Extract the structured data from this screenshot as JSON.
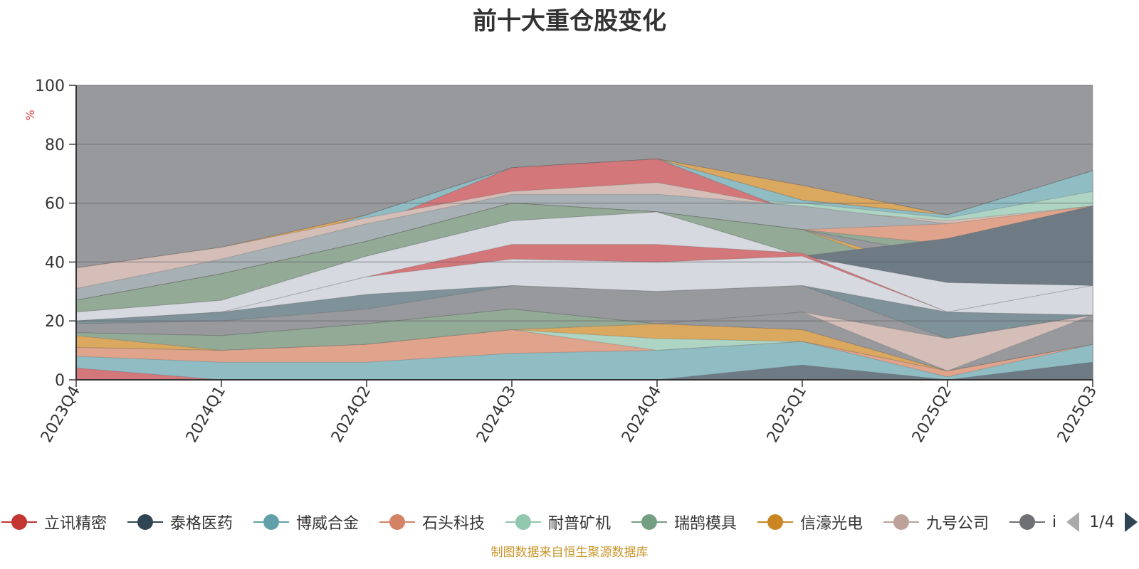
{
  "chart_data": {
    "type": "area",
    "stacked": false,
    "title": "前十大重仓股变化",
    "ylabel": "%",
    "xlabel": "",
    "ylim": [
      0,
      100
    ],
    "yticks": [
      0,
      20,
      40,
      60,
      80,
      100
    ],
    "categories": [
      "2023Q4",
      "2024Q1",
      "2024Q2",
      "2024Q3",
      "2024Q4",
      "2025Q1",
      "2025Q2",
      "2025Q3"
    ],
    "grid": true,
    "layers": [
      {
        "color": "#98999d",
        "values": [
          100,
          100,
          100,
          100,
          100,
          100,
          100,
          100
        ]
      },
      {
        "color": "#d6dae0",
        "values": [
          38,
          45,
          56,
          72,
          75,
          66,
          56,
          71
        ]
      },
      {
        "color": "#d4777a",
        "values": [
          38,
          45,
          56,
          72,
          75,
          66,
          56,
          71
        ]
      },
      {
        "color": "#dba860",
        "values": [
          38,
          45,
          56,
          72,
          75,
          66,
          56,
          71
        ]
      },
      {
        "color": "#92aa97",
        "values": [
          34,
          41,
          56,
          72,
          75,
          61,
          56,
          71
        ]
      },
      {
        "color": "#90bcc4",
        "values": [
          33,
          41,
          56,
          72,
          75,
          61,
          56,
          71
        ]
      },
      {
        "color": "#aed4c3",
        "values": [
          33,
          41,
          53,
          64,
          63,
          60,
          55,
          64
        ]
      },
      {
        "color": "#d6dae0",
        "values": [
          31,
          41,
          52,
          72,
          75,
          56,
          53,
          59
        ]
      },
      {
        "color": "#d4777a",
        "values": [
          31,
          41,
          52,
          72,
          75,
          56,
          53,
          59
        ]
      },
      {
        "color": "#d4beb7",
        "values": [
          38,
          45,
          55,
          64,
          67,
          58,
          54,
          59
        ]
      },
      {
        "color": "#a7b0b4",
        "values": [
          31,
          41,
          53,
          63,
          63,
          59,
          53,
          58
        ]
      },
      {
        "color": "#e0a48c",
        "values": [
          27,
          36,
          47,
          60,
          57,
          51,
          53,
          59
        ]
      },
      {
        "color": "#93aa97",
        "values": [
          27,
          36,
          47,
          60,
          57,
          51,
          46,
          46
        ]
      },
      {
        "color": "#d4beb7",
        "values": [
          27,
          36,
          47,
          60,
          57,
          51,
          42,
          45
        ]
      },
      {
        "color": "#97999d",
        "values": [
          27,
          36,
          47,
          60,
          57,
          51,
          42,
          45
        ]
      },
      {
        "color": "#dba860",
        "values": [
          27,
          36,
          47,
          60,
          57,
          51,
          36,
          39
        ]
      },
      {
        "color": "#93aa97",
        "values": [
          27,
          36,
          47,
          60,
          57,
          51,
          33,
          32
        ]
      },
      {
        "color": "#6e7b85",
        "values": [
          23,
          27,
          42,
          54,
          57,
          42,
          48,
          59
        ]
      },
      {
        "color": "#d6dae0",
        "values": [
          23,
          27,
          42,
          54,
          57,
          42,
          33,
          32
        ]
      },
      {
        "color": "#d4777a",
        "values": [
          20,
          23,
          35,
          46,
          46,
          43,
          23,
          32
        ]
      },
      {
        "color": "#d6dae0",
        "values": [
          20,
          23,
          35,
          41,
          40,
          42,
          23,
          32
        ]
      },
      {
        "color": "#7f9199",
        "values": [
          20,
          23,
          29,
          32,
          30,
          32,
          23,
          22
        ]
      },
      {
        "color": "#97999d",
        "values": [
          19,
          20,
          24,
          32,
          30,
          32,
          14,
          22
        ]
      },
      {
        "color": "#d4beb7",
        "values": [
          16,
          15,
          19,
          24,
          19,
          23,
          14,
          22
        ]
      },
      {
        "color": "#97999d",
        "values": [
          16,
          15,
          19,
          24,
          19,
          23,
          3,
          22
        ]
      },
      {
        "color": "#93aa97",
        "values": [
          16,
          15,
          19,
          24,
          19,
          17,
          3,
          12
        ]
      },
      {
        "color": "#dba860",
        "values": [
          15,
          10,
          12,
          17,
          19,
          17,
          3,
          12
        ]
      },
      {
        "color": "#aed4c3",
        "values": [
          11,
          10,
          12,
          17,
          14,
          13,
          3,
          12
        ]
      },
      {
        "color": "#e0a48c",
        "values": [
          11,
          10,
          12,
          17,
          10,
          13,
          3,
          12
        ]
      },
      {
        "color": "#90bcc4",
        "values": [
          8,
          6,
          6,
          9,
          10,
          13,
          1,
          12
        ]
      },
      {
        "color": "#d4777a",
        "values": [
          4,
          0,
          0,
          0,
          0,
          0,
          0,
          0
        ]
      },
      {
        "color": "#6e7b85",
        "values": [
          0,
          0,
          0,
          0,
          0,
          5,
          0,
          6
        ]
      }
    ],
    "legend": {
      "page": "1/4",
      "items": [
        {
          "name": "立讯精密",
          "color": "#c23531"
        },
        {
          "name": "泰格医药",
          "color": "#2f4554"
        },
        {
          "name": "博威合金",
          "color": "#61a0a8"
        },
        {
          "name": "石头科技",
          "color": "#d48265"
        },
        {
          "name": "耐普矿机",
          "color": "#91c7ae"
        },
        {
          "name": "瑞鹄模具",
          "color": "#749f83"
        },
        {
          "name": "信濠光电",
          "color": "#ca8622"
        },
        {
          "name": "九号公司",
          "color": "#bda29a"
        },
        {
          "name": "i",
          "color": "#6e7074"
        }
      ]
    },
    "source": "制图数据来自恒生聚源数据库"
  }
}
